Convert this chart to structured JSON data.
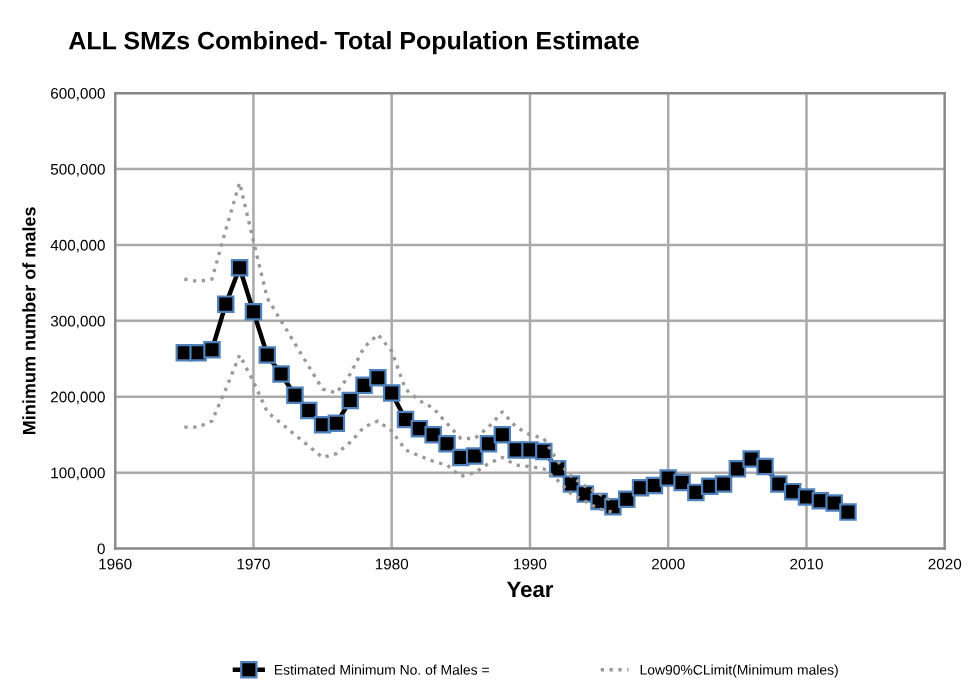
{
  "chart_data": {
    "type": "line",
    "title": "ALL SMZs Combined- Total Population Estimate",
    "xlabel": "Year",
    "ylabel": "Minimum number of males",
    "xlim": [
      1960,
      2020
    ],
    "xticks": [
      1960,
      1970,
      1980,
      1990,
      2000,
      2010,
      2020
    ],
    "ylim": [
      0,
      600000
    ],
    "yticks": [
      {
        "value": 0,
        "label": "0"
      },
      {
        "value": 100000,
        "label": "100,000"
      },
      {
        "value": 200000,
        "label": "200,000"
      },
      {
        "value": 300000,
        "label": "300,000"
      },
      {
        "value": 400000,
        "label": "400,000"
      },
      {
        "value": 500000,
        "label": "500,000"
      },
      {
        "value": 600000,
        "label": "600,000"
      }
    ],
    "grid": true,
    "legend": "bottom",
    "series": [
      {
        "name": "Estimated Minimum No. of Males =",
        "color": "#000000",
        "marker": "square",
        "line_style": "solid",
        "x": [
          1965,
          1966,
          1967,
          1968,
          1969,
          1970,
          1971,
          1972,
          1973,
          1974,
          1975,
          1976,
          1977,
          1978,
          1979,
          1980,
          1981,
          1982,
          1983,
          1984,
          1985,
          1986,
          1987,
          1988,
          1989,
          1990,
          1991,
          1992,
          1993,
          1994,
          1995,
          1996,
          1997,
          1998,
          1999,
          2000,
          2001,
          2002,
          2003,
          2004,
          2005,
          2006,
          2007,
          2008,
          2009,
          2010,
          2011,
          2012,
          2013
        ],
        "values": [
          258000,
          258000,
          262000,
          322000,
          370000,
          312000,
          255000,
          230000,
          202000,
          182000,
          163000,
          165000,
          195000,
          215000,
          225000,
          205000,
          170000,
          158000,
          150000,
          138000,
          120000,
          122000,
          138000,
          150000,
          130000,
          130000,
          128000,
          105000,
          85000,
          72000,
          62000,
          55000,
          65000,
          80000,
          83000,
          93000,
          87000,
          74000,
          82000,
          85000,
          105000,
          118000,
          108000,
          85000,
          75000,
          68000,
          63000,
          60000,
          48000
        ]
      },
      {
        "name": "Low90%CLimit(Minimum males)",
        "color": "#999999",
        "marker": "none",
        "line_style": "dotted",
        "x": [
          1965,
          1966,
          1967,
          1968,
          1969,
          1970,
          1971,
          1972,
          1973,
          1974,
          1975,
          1976,
          1977,
          1978,
          1979,
          1980,
          1981,
          1982,
          1983,
          1984,
          1985,
          1986,
          1987,
          1988,
          1989,
          1990,
          1991,
          1992,
          1993,
          1994,
          1995,
          1996
        ],
        "values": [
          160000,
          160000,
          168000,
          210000,
          255000,
          220000,
          180000,
          165000,
          150000,
          135000,
          120000,
          125000,
          140000,
          160000,
          168000,
          155000,
          130000,
          122000,
          115000,
          110000,
          95000,
          100000,
          112000,
          120000,
          110000,
          108000,
          105000,
          90000,
          72000,
          62000,
          52000,
          48000
        ]
      },
      {
        "color": "#999999",
        "marker": "none",
        "line_style": "dotted",
        "x": [
          1965,
          1966,
          1967,
          1968,
          1969,
          1970,
          1971,
          1972,
          1973,
          1974,
          1975,
          1976,
          1977,
          1978,
          1979,
          1980,
          1981,
          1982,
          1983,
          1984,
          1985,
          1986,
          1987,
          1988,
          1989,
          1990,
          1991,
          1992,
          1993,
          1994,
          1995,
          1996
        ],
        "values": [
          355000,
          352000,
          355000,
          420000,
          482000,
          405000,
          330000,
          300000,
          270000,
          240000,
          210000,
          205000,
          230000,
          265000,
          282000,
          260000,
          210000,
          195000,
          185000,
          165000,
          145000,
          145000,
          160000,
          180000,
          160000,
          150000,
          145000,
          115000,
          95000,
          82000,
          72000,
          62000
        ]
      }
    ]
  }
}
